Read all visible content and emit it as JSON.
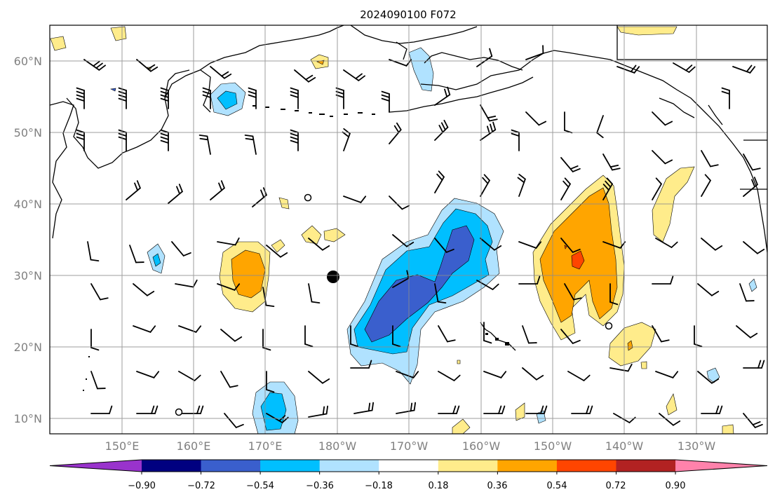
{
  "title": "2024090100 F072",
  "map": {
    "lat_labels": [
      "60°N",
      "50°N",
      "40°N",
      "30°N",
      "20°N",
      "10°N"
    ],
    "lon_labels": [
      "150°E",
      "160°E",
      "170°E",
      "180°W",
      "170°W",
      "160°W",
      "150°W",
      "140°W",
      "130°W"
    ],
    "gridlines": true,
    "coastline_color": "#000000"
  },
  "colorbar": {
    "orientation": "horizontal",
    "extend": "both",
    "tick_labels": [
      "−0.90",
      "−0.72",
      "−0.54",
      "−0.36",
      "−0.18",
      "0.18",
      "0.36",
      "0.54",
      "0.72",
      "0.90"
    ],
    "levels": [
      -0.9,
      -0.72,
      -0.54,
      -0.36,
      -0.18,
      0.18,
      0.36,
      0.54,
      0.72,
      0.9
    ],
    "colors": [
      "#9933cc",
      "#000080",
      "#3a5fcd",
      "#00bfff",
      "#b0e2ff",
      "#ffffff",
      "#ffec8b",
      "#ffa500",
      "#ff4500",
      "#b22222",
      "#ff82ab"
    ]
  }
}
